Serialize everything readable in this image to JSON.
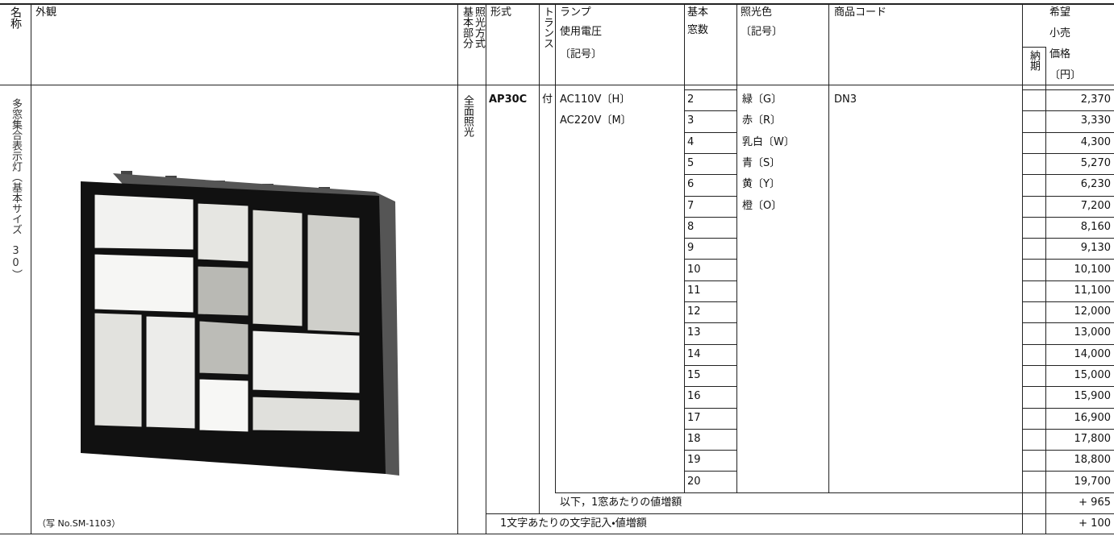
{
  "header": {
    "name": "名称",
    "appearance": "外観",
    "basic_part": "基本部分",
    "lighting_method": "照光方式",
    "model": "形式",
    "transformer": "トランス",
    "lamp_voltage": [
      "ランプ",
      "使用電圧",
      "〔記号〕"
    ],
    "windows": [
      "基本",
      "窓数"
    ],
    "color": [
      "照光色",
      "〔記号〕"
    ],
    "product_code": "商品コード",
    "delivery": "納期",
    "price": [
      "希望",
      "小売",
      "価格",
      "〔円〕"
    ]
  },
  "product": {
    "name": "多窓集合表示灯（基本サイズ　30）",
    "lighting": "全面照光",
    "model": "AP30C",
    "transformer": "付",
    "voltages": [
      "AC110V〔H〕",
      "AC220V〔M〕"
    ],
    "colors": [
      "緑〔G〕",
      "赤〔R〕",
      "乳白〔W〕",
      "青〔S〕",
      "黄〔Y〕",
      "橙〔O〕"
    ],
    "code": "DN3",
    "photo_caption": "（写 No.SM-1103）"
  },
  "rows": [
    {
      "windows": 2,
      "price": "2,370"
    },
    {
      "windows": 3,
      "price": "3,330"
    },
    {
      "windows": 4,
      "price": "4,300"
    },
    {
      "windows": 5,
      "price": "5,270"
    },
    {
      "windows": 6,
      "price": "6,230"
    },
    {
      "windows": 7,
      "price": "7,200"
    },
    {
      "windows": 8,
      "price": "8,160"
    },
    {
      "windows": 9,
      "price": "9,130"
    },
    {
      "windows": 10,
      "price": "10,100"
    },
    {
      "windows": 11,
      "price": "11,100"
    },
    {
      "windows": 12,
      "price": "12,000"
    },
    {
      "windows": 13,
      "price": "13,000"
    },
    {
      "windows": 14,
      "price": "14,000"
    },
    {
      "windows": 15,
      "price": "15,000"
    },
    {
      "windows": 16,
      "price": "15,900"
    },
    {
      "windows": 17,
      "price": "16,900"
    },
    {
      "windows": 18,
      "price": "17,800"
    },
    {
      "windows": 19,
      "price": "18,800"
    },
    {
      "windows": 20,
      "price": "19,700"
    }
  ],
  "extra_window": {
    "label": "以下，1窓あたりの値増額",
    "price": "+ 965"
  },
  "text_entry": {
    "label": "1文字あたりの文字記入・値増額",
    "price": "+ 100"
  }
}
